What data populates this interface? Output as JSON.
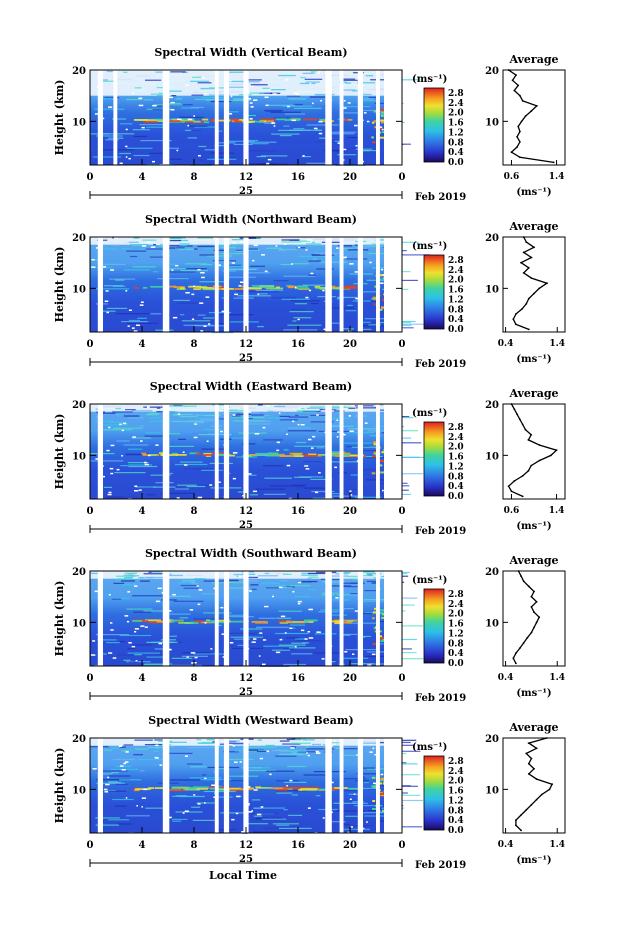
{
  "figure": {
    "xlabel": "Local Time",
    "xticks": [
      "0",
      "4",
      "8",
      "12",
      "16",
      "20",
      "0"
    ],
    "day_label": "25",
    "month_label": "Feb 2019",
    "ylabel": "Height (km)",
    "yticks": [
      "20",
      "10"
    ],
    "unit_label": "(ms⁻¹)",
    "colorbar_ticks": [
      "2.8",
      "2.4",
      "2.0",
      "1.6",
      "1.2",
      "0.8",
      "0.4",
      "0.0"
    ],
    "avg_title": "Average",
    "avg_xlabel": "(ms⁻¹)"
  },
  "chart_data": [
    {
      "type": "heatmap",
      "title": "Spectral Width (Vertical Beam)",
      "xlabel": "Local Time",
      "ylabel": "Height (km)",
      "xlim": [
        0,
        24
      ],
      "ylim": [
        1.5,
        20
      ],
      "colorbar": {
        "label": "(ms⁻¹)",
        "range": [
          0.0,
          3.0
        ]
      },
      "data_gaps_hours": [
        [
          0.6,
          1.0
        ],
        [
          1.8,
          2.1
        ],
        [
          5.6,
          6.1
        ],
        [
          9.6,
          9.9
        ],
        [
          10.3,
          10.7
        ],
        [
          11.8,
          12.2
        ],
        [
          18.1,
          18.6
        ],
        [
          19.2,
          19.5
        ],
        [
          20.6,
          21.0
        ],
        [
          22.0,
          22.3
        ]
      ],
      "profile": {
        "title": "Average",
        "xlabel": "(ms⁻¹)",
        "xticks": [
          "0.6",
          "1.4"
        ],
        "xlim": [
          0.45,
          1.55
        ],
        "heights": [
          2,
          3,
          4,
          5,
          6,
          7,
          8,
          9,
          10,
          11,
          12,
          13,
          14,
          15,
          16,
          17,
          18,
          19,
          20
        ],
        "values": [
          1.35,
          0.75,
          0.6,
          0.7,
          0.75,
          0.7,
          0.75,
          0.72,
          0.78,
          0.85,
          0.95,
          1.05,
          0.8,
          0.75,
          0.65,
          0.72,
          0.62,
          0.68,
          0.55
        ]
      }
    },
    {
      "type": "heatmap",
      "title": "Spectral Width (Northward Beam)",
      "xlabel": "Local Time",
      "ylabel": "Height (km)",
      "xlim": [
        0,
        24
      ],
      "ylim": [
        1.5,
        20
      ],
      "colorbar": {
        "label": "(ms⁻¹)",
        "range": [
          0.0,
          3.0
        ]
      },
      "data_gaps_hours": [
        [
          0.6,
          1.0
        ],
        [
          5.6,
          6.1
        ],
        [
          9.6,
          9.9
        ],
        [
          10.3,
          10.7
        ],
        [
          11.8,
          12.2
        ],
        [
          18.1,
          18.6
        ],
        [
          19.2,
          19.5
        ],
        [
          20.6,
          21.0
        ],
        [
          22.0,
          22.3
        ]
      ],
      "profile": {
        "title": "Average",
        "xlabel": "(ms⁻¹)",
        "xticks": [
          "0.4",
          "1.4"
        ],
        "xlim": [
          0.35,
          1.55
        ],
        "heights": [
          2,
          3,
          4,
          5,
          6,
          7,
          8,
          9,
          10,
          11,
          12,
          13,
          14,
          15,
          16,
          17,
          18,
          19,
          20
        ],
        "values": [
          0.85,
          0.6,
          0.55,
          0.6,
          0.72,
          0.8,
          0.85,
          0.95,
          1.05,
          1.2,
          0.9,
          0.75,
          0.85,
          0.7,
          0.9,
          0.75,
          0.95,
          0.8,
          0.75
        ]
      }
    },
    {
      "type": "heatmap",
      "title": "Spectral Width (Eastward Beam)",
      "xlabel": "Local Time",
      "ylabel": "Height (km)",
      "xlim": [
        0,
        24
      ],
      "ylim": [
        1.5,
        20
      ],
      "colorbar": {
        "label": "(ms⁻¹)",
        "range": [
          0.0,
          3.0
        ]
      },
      "data_gaps_hours": [
        [
          0.6,
          1.0
        ],
        [
          5.6,
          6.1
        ],
        [
          9.6,
          9.9
        ],
        [
          10.3,
          10.7
        ],
        [
          11.8,
          12.2
        ],
        [
          18.1,
          18.6
        ],
        [
          19.2,
          19.5
        ],
        [
          20.6,
          21.0
        ],
        [
          22.0,
          22.3
        ]
      ],
      "profile": {
        "title": "Average",
        "xlabel": "(ms⁻¹)",
        "xticks": [
          "0.6",
          "1.4"
        ],
        "xlim": [
          0.45,
          1.55
        ],
        "heights": [
          2,
          3,
          4,
          5,
          6,
          7,
          8,
          9,
          10,
          11,
          12,
          13,
          14,
          15,
          16,
          17,
          18,
          19,
          20
        ],
        "values": [
          0.8,
          0.6,
          0.55,
          0.65,
          0.8,
          0.9,
          0.95,
          1.1,
          1.3,
          1.4,
          1.1,
          0.9,
          0.95,
          0.85,
          0.8,
          0.75,
          0.7,
          0.65,
          0.6
        ]
      }
    },
    {
      "type": "heatmap",
      "title": "Spectral Width (Southward Beam)",
      "xlabel": "Local Time",
      "ylabel": "Height (km)",
      "xlim": [
        0,
        24
      ],
      "ylim": [
        1.5,
        20
      ],
      "colorbar": {
        "label": "(ms⁻¹)",
        "range": [
          0.0,
          3.0
        ]
      },
      "data_gaps_hours": [
        [
          0.6,
          1.0
        ],
        [
          5.6,
          6.1
        ],
        [
          9.6,
          9.9
        ],
        [
          10.3,
          10.7
        ],
        [
          11.8,
          12.2
        ],
        [
          18.1,
          18.6
        ],
        [
          19.2,
          19.5
        ],
        [
          20.6,
          21.0
        ],
        [
          22.0,
          22.3
        ]
      ],
      "profile": {
        "title": "Average",
        "xlabel": "(ms⁻¹)",
        "xticks": [
          "0.4",
          "1.4"
        ],
        "xlim": [
          0.35,
          1.55
        ],
        "heights": [
          2,
          3,
          4,
          5,
          6,
          7,
          8,
          9,
          10,
          11,
          12,
          13,
          14,
          15,
          16,
          17,
          18,
          19,
          20
        ],
        "values": [
          0.6,
          0.55,
          0.6,
          0.68,
          0.75,
          0.82,
          0.9,
          0.95,
          1.0,
          1.05,
          0.95,
          0.9,
          1.0,
          0.9,
          0.95,
          0.85,
          0.75,
          0.7,
          0.65
        ]
      }
    },
    {
      "type": "heatmap",
      "title": "Spectral Width (Westward Beam)",
      "xlabel": "Local Time",
      "ylabel": "Height (km)",
      "xlim": [
        0,
        24
      ],
      "ylim": [
        1.5,
        20
      ],
      "colorbar": {
        "label": "(ms⁻¹)",
        "range": [
          0.0,
          3.0
        ]
      },
      "data_gaps_hours": [
        [
          0.6,
          1.0
        ],
        [
          5.6,
          6.1
        ],
        [
          9.6,
          9.9
        ],
        [
          10.3,
          10.7
        ],
        [
          11.8,
          12.2
        ],
        [
          18.1,
          18.6
        ],
        [
          19.2,
          19.5
        ],
        [
          20.6,
          21.0
        ],
        [
          22.0,
          22.3
        ]
      ],
      "profile": {
        "title": "Average",
        "xlabel": "(ms⁻¹)",
        "xticks": [
          "0.4",
          "1.4"
        ],
        "xlim": [
          0.35,
          1.55
        ],
        "heights": [
          2,
          3,
          4,
          5,
          6,
          7,
          8,
          9,
          10,
          11,
          12,
          13,
          14,
          15,
          16,
          17,
          18,
          19,
          20
        ],
        "values": [
          0.7,
          0.6,
          0.6,
          0.7,
          0.8,
          0.9,
          1.0,
          1.1,
          1.25,
          1.3,
          1.0,
          0.85,
          0.95,
          0.85,
          0.9,
          0.8,
          1.0,
          0.85,
          1.2
        ]
      }
    }
  ]
}
